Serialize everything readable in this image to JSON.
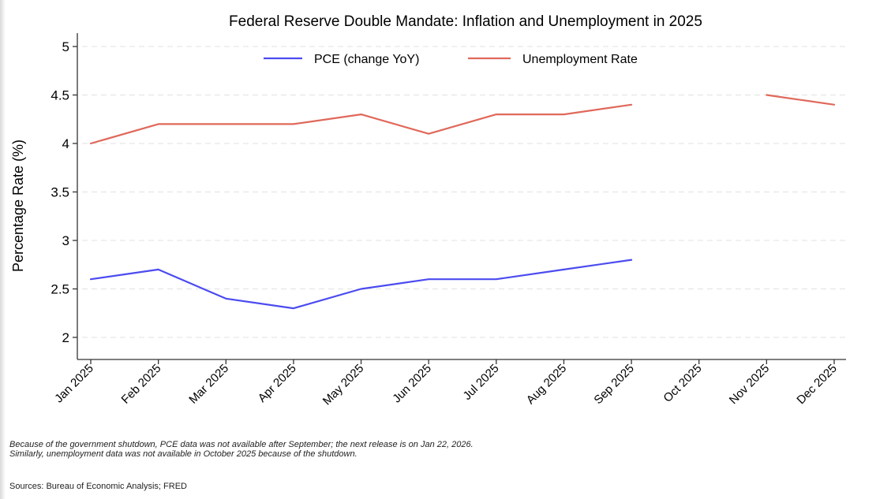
{
  "chart_data": {
    "type": "line",
    "title": "Federal Reserve Double Mandate: Inflation and Unemployment in 2025",
    "xlabel": "",
    "ylabel": "Percentage Rate (%)",
    "ylim": [
      1.8,
      5.1
    ],
    "yticks": [
      2,
      2.5,
      3,
      3.5,
      4,
      4.5,
      5
    ],
    "ytick_labels": [
      "2",
      "2.5",
      "3",
      "3.5",
      "4",
      "4.5",
      "5"
    ],
    "grid": true,
    "legend_position": "top",
    "categories": [
      "Jan 2025",
      "Feb 2025",
      "Mar 2025",
      "Apr 2025",
      "May 2025",
      "Jun 2025",
      "Jul 2025",
      "Aug 2025",
      "Sep 2025",
      "Oct 2025",
      "Nov 2025",
      "Dec 2025"
    ],
    "series": [
      {
        "name": "PCE (change YoY)",
        "color": "#4b4bf0",
        "values": [
          2.6,
          2.7,
          2.4,
          2.3,
          2.5,
          2.6,
          2.6,
          2.7,
          2.8,
          null,
          null,
          null
        ]
      },
      {
        "name": "Unemployment Rate",
        "color": "#e0685a",
        "values": [
          4.0,
          4.2,
          4.2,
          4.2,
          4.3,
          4.1,
          4.3,
          4.3,
          4.4,
          null,
          4.5,
          4.4
        ]
      }
    ],
    "notes": [
      "Because of the government shutdown, PCE data was not available after September; the next release is on Jan 22, 2026.",
      "Similarly, unemployment data was not available in October 2025 because of the shutdown."
    ],
    "sources": "Sources: Bureau of Economic Analysis; FRED"
  }
}
